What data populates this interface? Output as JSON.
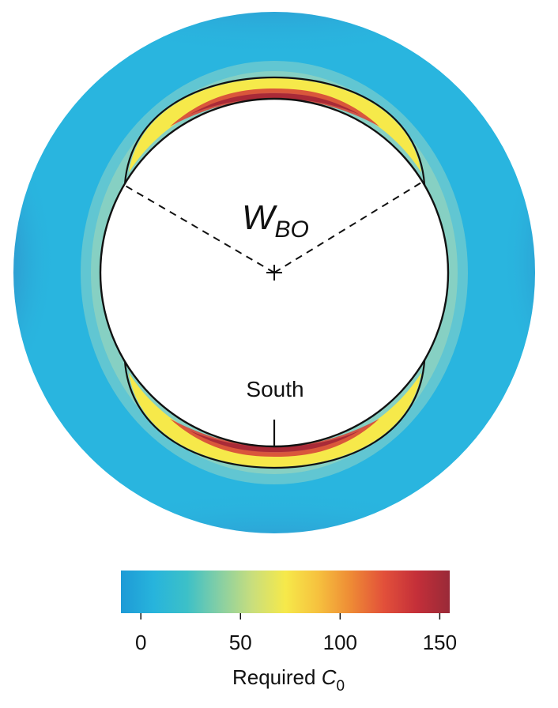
{
  "diagram": {
    "angle_label": "W",
    "angle_label_subscript": "BO",
    "direction_label": "South"
  },
  "colorbar": {
    "title": "Required ",
    "title_symbol": "C",
    "title_symbol_subscript": "0",
    "ticks": [
      "0",
      "50",
      "100",
      "150"
    ],
    "tick_values": [
      0,
      50,
      100,
      150
    ],
    "range": [
      -10,
      155
    ],
    "colors": [
      "#1e9ad6",
      "#27b4dc",
      "#3cc0c8",
      "#86cfa4",
      "#c9de7c",
      "#f6e94a",
      "#f6c13e",
      "#ee8a35",
      "#e2503a",
      "#c42f39",
      "#992a38"
    ]
  },
  "colors": {
    "outer_light": "#29b5df",
    "outer_dark": "#3b4fa0",
    "halo": "#8fd4c6",
    "band_yellow": "#f5e94a",
    "band_red": "#b82a36"
  }
}
